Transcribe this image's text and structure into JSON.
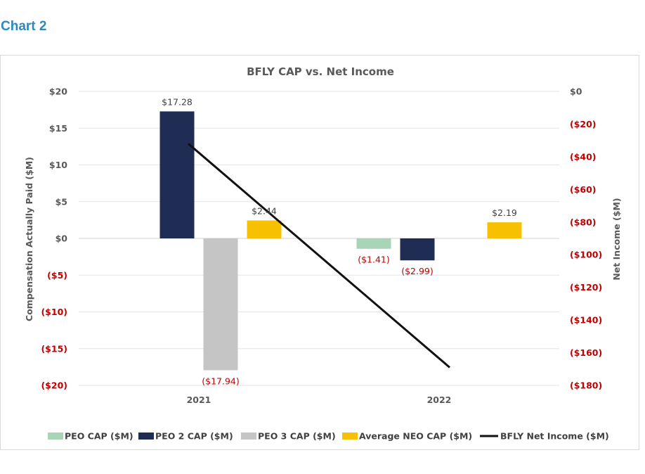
{
  "page": {
    "heading": "Chart 2"
  },
  "colors": {
    "peo": "#a8d5b5",
    "peo2": "#1f2d54",
    "peo3": "#c5c5c5",
    "neo": "#f7c000",
    "net_income": "#111111",
    "negative_text": "#c00000",
    "positive_text": "#595959"
  },
  "chart_data": {
    "type": "bar",
    "title": "BFLY CAP vs. Net Income",
    "categories": [
      "2021",
      "2022"
    ],
    "ylabel": "Compensation Actually Paid ($M)",
    "y2label": "Net Income ($M)",
    "ylim": [
      -20,
      20
    ],
    "y2lim": [
      -180,
      0
    ],
    "yticks": [
      {
        "value": 20,
        "label": "$20"
      },
      {
        "value": 15,
        "label": "$15"
      },
      {
        "value": 10,
        "label": "$10"
      },
      {
        "value": 5,
        "label": "$5"
      },
      {
        "value": 0,
        "label": "$0"
      },
      {
        "value": -5,
        "label": "($5)"
      },
      {
        "value": -10,
        "label": "($10)"
      },
      {
        "value": -15,
        "label": "($15)"
      },
      {
        "value": -20,
        "label": "($20)"
      }
    ],
    "y2ticks": [
      {
        "value": 0,
        "label": "$0"
      },
      {
        "value": -20,
        "label": "($20)"
      },
      {
        "value": -40,
        "label": "($40)"
      },
      {
        "value": -60,
        "label": "($60)"
      },
      {
        "value": -80,
        "label": "($80)"
      },
      {
        "value": -100,
        "label": "($100)"
      },
      {
        "value": -120,
        "label": "($120)"
      },
      {
        "value": -140,
        "label": "($140)"
      },
      {
        "value": -160,
        "label": "($160)"
      },
      {
        "value": -180,
        "label": "($180)"
      }
    ],
    "series": [
      {
        "name": "PEO CAP ($M)",
        "key": "peo",
        "values": [
          null,
          -1.41
        ],
        "labels": [
          "",
          "($1.41)"
        ]
      },
      {
        "name": "PEO 2 CAP ($M)",
        "key": "peo2",
        "values": [
          17.28,
          -2.99
        ],
        "labels": [
          "$17.28",
          "($2.99)"
        ]
      },
      {
        "name": "PEO 3 CAP ($M)",
        "key": "peo3",
        "values": [
          -17.94,
          null
        ],
        "labels": [
          "($17.94)",
          ""
        ]
      },
      {
        "name": "Average NEO CAP ($M)",
        "key": "neo",
        "values": [
          2.44,
          2.19
        ],
        "labels": [
          "$2.44",
          "$2.19"
        ]
      }
    ],
    "line_series": {
      "name": "BFLY Net Income ($M)",
      "key": "net_income",
      "axis": "right",
      "values": [
        -32,
        -169
      ]
    },
    "legend_position": "bottom",
    "grid": true
  }
}
